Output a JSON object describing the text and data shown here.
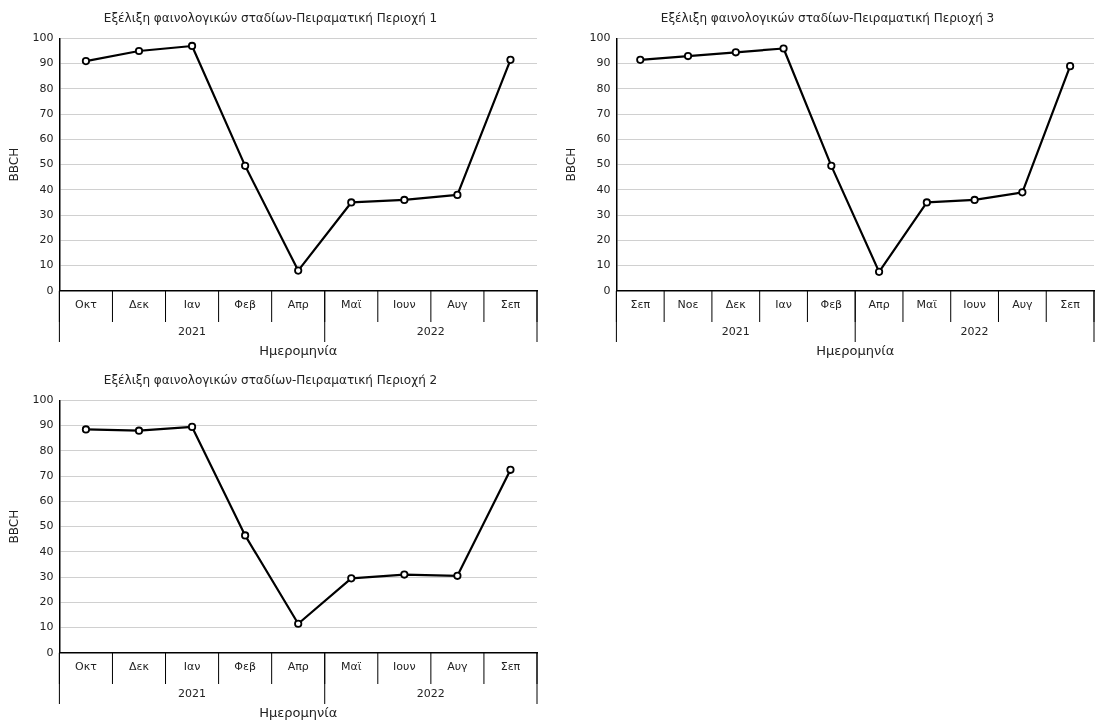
{
  "chart_data": [
    {
      "type": "line",
      "title": "Εξέλιξη φαινολογικών σταδίων-Πειραματική Περιοχή 1",
      "xlabel": "Ημερομηνία",
      "ylabel": "BBCH",
      "categories": [
        "Οκτ",
        "Δεκ",
        "Ιαν",
        "Φεβ",
        "Απρ",
        "Μαϊ",
        "Ιουν",
        "Αυγ",
        "Σεπ"
      ],
      "series": [
        {
          "color": "#000000",
          "values": [
            91,
            95,
            97,
            49.5,
            8,
            35,
            36,
            38,
            91.5
          ]
        }
      ],
      "annotations": [
        "2021",
        "2022"
      ],
      "ylim": [
        0,
        100
      ],
      "yticks": [
        0,
        10,
        20,
        30,
        40,
        50,
        60,
        70,
        80,
        90,
        100
      ],
      "grid": "y",
      "legend": false,
      "marker": "circle",
      "line_style": "solid"
    },
    {
      "type": "line",
      "title": "Εξέλιξη φαινολογικών σταδίων-Πειραματική Περιοχή 3",
      "xlabel": "Ημερομηνία",
      "ylabel": "BBCH",
      "categories": [
        "Σεπ",
        "Νοε",
        "Δεκ",
        "Ιαν",
        "Φεβ",
        "Απρ",
        "Μαϊ",
        "Ιουν",
        "Αυγ",
        "Σεπ"
      ],
      "series": [
        {
          "color": "#000000",
          "values": [
            91.5,
            93,
            94.5,
            96,
            49.5,
            7.5,
            35,
            36,
            39,
            89
          ]
        }
      ],
      "annotations": [
        "2021",
        "2022"
      ],
      "ylim": [
        0,
        100
      ],
      "yticks": [
        0,
        10,
        20,
        30,
        40,
        50,
        60,
        70,
        80,
        90,
        100
      ],
      "grid": "y",
      "legend": false,
      "marker": "circle",
      "line_style": "solid"
    },
    {
      "type": "line",
      "title": "Εξέλιξη φαινολογικών σταδίων-Πειραματική Περιοχή 2",
      "xlabel": "Ημερομηνία",
      "ylabel": "BBCH",
      "categories": [
        "Οκτ",
        "Δεκ",
        "Ιαν",
        "Φεβ",
        "Απρ",
        "Μαϊ",
        "Ιουν",
        "Αυγ",
        "Σεπ"
      ],
      "series": [
        {
          "color": "#000000",
          "values": [
            88.5,
            88,
            89.5,
            46.5,
            11.5,
            29.5,
            31,
            30.5,
            72.5
          ]
        }
      ],
      "annotations": [
        "2021",
        "2022"
      ],
      "ylim": [
        0,
        100
      ],
      "yticks": [
        0,
        10,
        20,
        30,
        40,
        50,
        60,
        70,
        80,
        90,
        100
      ],
      "grid": "y",
      "legend": false,
      "marker": "circle",
      "line_style": "solid"
    }
  ]
}
